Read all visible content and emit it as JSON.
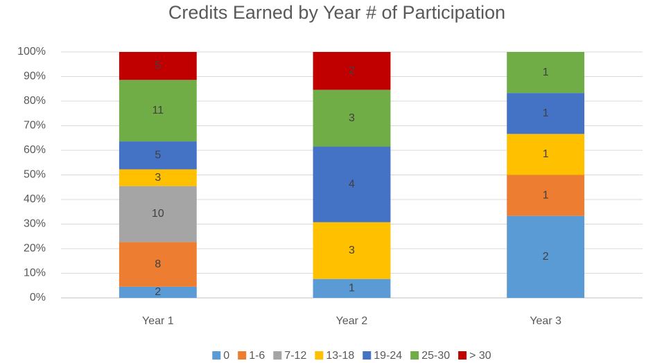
{
  "chart_data": {
    "type": "bar",
    "stacking": "percent",
    "title": "Credits Earned by Year # of Participation",
    "categories": [
      "Year 1",
      "Year 2",
      "Year 3"
    ],
    "series": [
      {
        "name": "0",
        "color": "#5b9bd5",
        "values": [
          2,
          1,
          2
        ]
      },
      {
        "name": "1-6",
        "color": "#ed7d31",
        "values": [
          8,
          null,
          1
        ]
      },
      {
        "name": "7-12",
        "color": "#a5a5a5",
        "values": [
          10,
          null,
          null
        ]
      },
      {
        "name": "13-18",
        "color": "#ffc000",
        "values": [
          3,
          3,
          1
        ]
      },
      {
        "name": "19-24",
        "color": "#4472c4",
        "values": [
          5,
          4,
          1
        ]
      },
      {
        "name": "25-30",
        "color": "#70ad47",
        "values": [
          11,
          3,
          1
        ]
      },
      {
        "name": "> 30",
        "color": "#c00000",
        "values": [
          5,
          2,
          null
        ]
      }
    ],
    "ylim": [
      0,
      100
    ],
    "yticks": [
      {
        "value": 0,
        "label": "0%"
      },
      {
        "value": 10,
        "label": "10%"
      },
      {
        "value": 20,
        "label": "20%"
      },
      {
        "value": 30,
        "label": "30%"
      },
      {
        "value": 40,
        "label": "40%"
      },
      {
        "value": 50,
        "label": "50%"
      },
      {
        "value": 60,
        "label": "60%"
      },
      {
        "value": 70,
        "label": "70%"
      },
      {
        "value": 80,
        "label": "80%"
      },
      {
        "value": 90,
        "label": "90%"
      },
      {
        "value": 100,
        "label": "100%"
      }
    ],
    "grid": true,
    "legend": "bottom"
  }
}
